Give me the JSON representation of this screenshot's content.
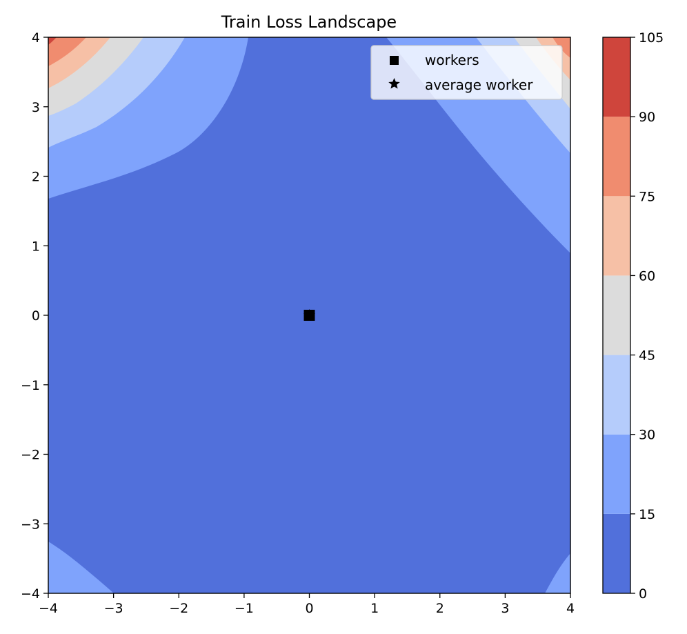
{
  "chart_data": {
    "type": "contourf",
    "title": "Train Loss Landscape",
    "xlabel": "",
    "ylabel": "",
    "xlim": [
      -4,
      4
    ],
    "ylim": [
      -4,
      4
    ],
    "x_ticks": [
      -4,
      -3,
      -2,
      -1,
      0,
      1,
      2,
      3,
      4
    ],
    "y_ticks": [
      -4,
      -3,
      -2,
      -1,
      0,
      1,
      2,
      3,
      4
    ],
    "colorbar": {
      "levels": [
        0,
        15,
        30,
        45,
        60,
        75,
        90,
        105
      ],
      "colors": [
        "#5170db",
        "#7fa3fc",
        "#b5ccfb",
        "#dcdcdc",
        "#f6c0a6",
        "#f08c6f",
        "#cf453c"
      ]
    },
    "legend": {
      "placement": "top-right",
      "entries": [
        {
          "label": "workers",
          "marker": "square"
        },
        {
          "label": "average worker",
          "marker": "star"
        }
      ]
    },
    "points": [
      {
        "series": "workers",
        "x": 0,
        "y": 0
      },
      {
        "series": "average worker",
        "x": 0,
        "y": 0
      }
    ]
  }
}
